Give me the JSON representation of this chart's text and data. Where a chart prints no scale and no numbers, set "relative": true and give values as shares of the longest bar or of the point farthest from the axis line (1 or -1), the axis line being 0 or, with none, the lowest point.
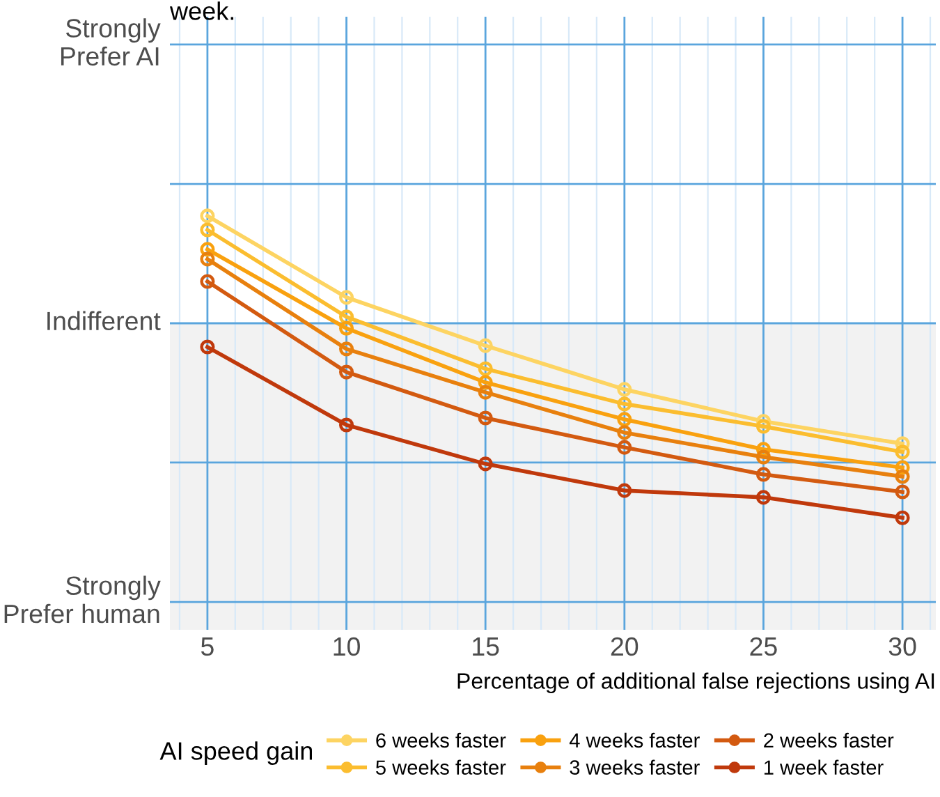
{
  "chart_data": {
    "type": "line",
    "title": "week.",
    "xlabel": "Percentage of additional false rejections using AI",
    "legend_title": "AI speed gain",
    "relative": true,
    "x": [
      5,
      10,
      15,
      20,
      25,
      30
    ],
    "series": [
      {
        "name": "6 weeks faster",
        "color": "#fdd462",
        "values": [
          0.552,
          0.133,
          -0.115,
          -0.34,
          -0.504,
          -0.619
        ]
      },
      {
        "name": "5 weeks faster",
        "color": "#fbbd2f",
        "values": [
          0.48,
          0.033,
          -0.234,
          -0.415,
          -0.53,
          -0.662
        ]
      },
      {
        "name": "4 weeks faster",
        "color": "#f9a10f",
        "values": [
          0.38,
          -0.026,
          -0.304,
          -0.494,
          -0.648,
          -0.742
        ]
      },
      {
        "name": "3 weeks faster",
        "color": "#e8800e",
        "values": [
          0.33,
          -0.132,
          -0.355,
          -0.562,
          -0.688,
          -0.788
        ]
      },
      {
        "name": "2 weeks faster",
        "color": "#d35a10",
        "values": [
          0.215,
          -0.251,
          -0.487,
          -0.638,
          -0.777,
          -0.867
        ]
      },
      {
        "name": "1 week faster",
        "color": "#c0390c",
        "values": [
          -0.122,
          -0.523,
          -0.723,
          -0.86,
          -0.895,
          -1
        ]
      }
    ],
    "xlim": [
      3.65,
      31.2
    ],
    "xticks": [
      5,
      10,
      15,
      20,
      25,
      30
    ],
    "ref_lines": [
      {
        "axis": "y",
        "value": -1.433,
        "label": "Strongly\nPrefer human",
        "color": "#5aa5dd"
      },
      {
        "axis": "y",
        "value": -0.716,
        "label": null,
        "color": "#5aa5dd"
      },
      {
        "axis": "y",
        "value": 0,
        "label": "Indifferent",
        "color": "#5aa5dd"
      },
      {
        "axis": "y",
        "value": 0.716,
        "label": null,
        "color": "#5aa5dd"
      },
      {
        "axis": "y",
        "value": 1.433,
        "label": "Strongly\nPrefer AI",
        "color": "#5aa5dd"
      }
    ],
    "bands": [
      {
        "axis": "y",
        "from": -1.576,
        "to": 0,
        "color": "#f2f2f2"
      }
    ],
    "grid": "x",
    "legend": "bottom",
    "marker": "circle",
    "line_style": "solid"
  }
}
